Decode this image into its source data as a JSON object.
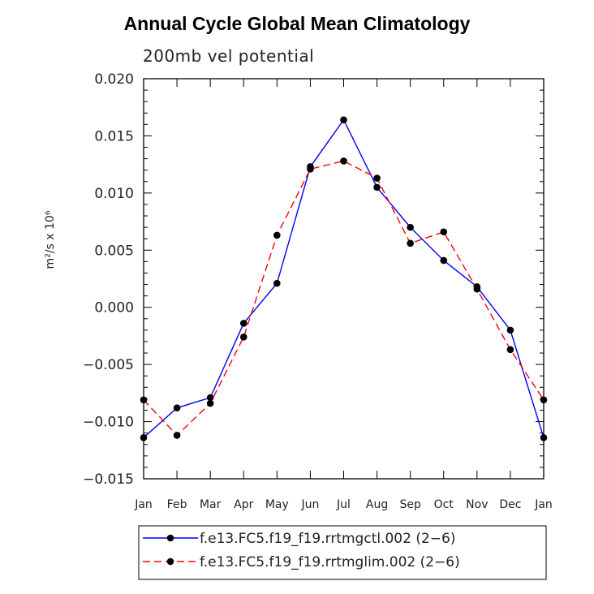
{
  "chart_data": {
    "type": "line",
    "title": "Annual Cycle Global Mean Climatology",
    "subtitle": "200mb vel potential",
    "ylabel": "m²/s x 10⁶",
    "xlabel": "",
    "categories": [
      "Jan",
      "Feb",
      "Mar",
      "Apr",
      "May",
      "Jun",
      "Jul",
      "Aug",
      "Sep",
      "Oct",
      "Nov",
      "Dec",
      "Jan"
    ],
    "y_ticks": [
      "0.020",
      "0.015",
      "0.010",
      "0.005",
      "0.000",
      "−0.005",
      "−0.010",
      "−0.015"
    ],
    "ylim": [
      -0.015,
      0.02
    ],
    "grid": false,
    "legend_position": "bottom",
    "series": [
      {
        "name": "f.e13.FC5.f19_f19.rrtmgctl.002 (2−6)",
        "color": "#0000ff",
        "dash": "solid",
        "values": [
          -0.0114,
          -0.0088,
          -0.0079,
          -0.0014,
          0.0021,
          0.0123,
          0.0164,
          0.0105,
          0.007,
          0.0041,
          0.0018,
          -0.002,
          -0.0114
        ]
      },
      {
        "name": "f.e13.FC5.f19_f19.rrtmglim.002 (2−6)",
        "color": "#ff0000",
        "dash": "dashed",
        "values": [
          -0.0081,
          -0.0112,
          -0.0084,
          -0.0026,
          0.0063,
          0.0121,
          0.0128,
          0.0113,
          0.0056,
          0.0066,
          0.0016,
          -0.0037,
          -0.0081
        ]
      }
    ]
  }
}
